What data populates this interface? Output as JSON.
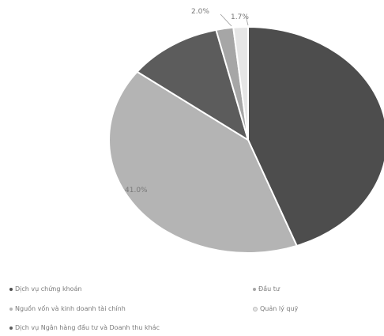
{
  "chart_data": {
    "type": "pie",
    "data_labels": [
      "2.0%",
      "1.7%",
      "41.0%"
    ],
    "slices": [
      {
        "name": "Dịch vụ chứng khoán",
        "value": 44.3,
        "color": "#4d4d4d"
      },
      {
        "name": "Nguồn vốn và kinh doanh tài chính",
        "value": 41.0,
        "color": "#b4b4b4"
      },
      {
        "name": "Dịch vụ Ngân hàng đầu tư và Doanh thu khác",
        "value": 11.0,
        "color": "#5c5c5c"
      },
      {
        "name": "Đầu tư",
        "value": 2.0,
        "color": "#a6a6a6"
      },
      {
        "name": "Quản lý quỹ",
        "value": 1.7,
        "color": "#e6e6e6"
      }
    ],
    "legend": {
      "placement": "bottom",
      "items": [
        "Dịch vụ chứng khoán",
        "Nguồn vốn và kinh doanh tài chính",
        "Dịch vụ Ngân hàng đầu tư và Doanh thu khác",
        "Đầu tư",
        "Quản lý quỹ"
      ]
    }
  }
}
